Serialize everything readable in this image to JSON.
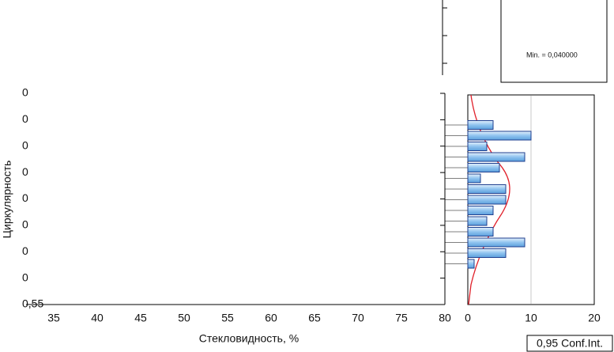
{
  "chart_data": [
    {
      "type": "scatter",
      "x_label": "Стекловидность, %",
      "y_label": "Циркулярность",
      "xlim": [
        32,
        80
      ],
      "xticks": [
        35,
        40,
        45,
        50,
        55,
        60,
        65,
        70,
        75,
        80
      ],
      "ytick_labels": [
        "0",
        "0",
        "0",
        "0",
        "0",
        "0",
        "0",
        "0",
        "0,55"
      ]
    },
    {
      "type": "bar",
      "orientation": "horizontal",
      "color": "#9ccaf2",
      "values": [
        4,
        10,
        3,
        9,
        5,
        2,
        6,
        6,
        4,
        3,
        4,
        9,
        6,
        1
      ],
      "xlim": [
        0,
        20
      ],
      "xticks": [
        0,
        10,
        20
      ],
      "grid": true,
      "legend_text": "Min. = 0,040000",
      "footer": "0,95 Conf.Int."
    }
  ]
}
